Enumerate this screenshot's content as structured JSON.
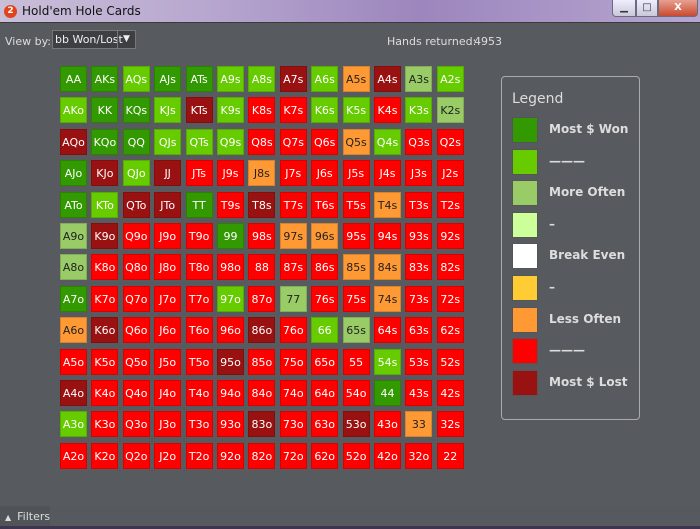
{
  "window": {
    "title": "Hold'em Hole Cards",
    "app_icon": "2",
    "min": "▁",
    "max": "□",
    "close": "X"
  },
  "toolbar": {
    "view_by_label": "View by:",
    "view_by_value": "bb Won/Lost",
    "hands_label": "Hands returned:",
    "hands_value": "4953"
  },
  "colors": {
    "D": "#339900",
    "G": "#66cc00",
    "L": "#99cc66",
    "P": "#ccff99",
    "W": "#ffffff",
    "Y": "#ffcc33",
    "O": "#ff9933",
    "R": "#ff0000",
    "M": "#991111"
  },
  "grid": [
    [
      [
        "AA",
        "D"
      ],
      [
        "AKs",
        "D"
      ],
      [
        "AQs",
        "G"
      ],
      [
        "AJs",
        "D"
      ],
      [
        "ATs",
        "D"
      ],
      [
        "A9s",
        "G"
      ],
      [
        "A8s",
        "G"
      ],
      [
        "A7s",
        "M"
      ],
      [
        "A6s",
        "G"
      ],
      [
        "A5s",
        "O"
      ],
      [
        "A4s",
        "M"
      ],
      [
        "A3s",
        "L"
      ],
      [
        "A2s",
        "G"
      ]
    ],
    [
      [
        "AKo",
        "G"
      ],
      [
        "KK",
        "D"
      ],
      [
        "KQs",
        "D"
      ],
      [
        "KJs",
        "G"
      ],
      [
        "KTs",
        "M"
      ],
      [
        "K9s",
        "G"
      ],
      [
        "K8s",
        "R"
      ],
      [
        "K7s",
        "R"
      ],
      [
        "K6s",
        "G"
      ],
      [
        "K5s",
        "G"
      ],
      [
        "K4s",
        "R"
      ],
      [
        "K3s",
        "G"
      ],
      [
        "K2s",
        "L"
      ]
    ],
    [
      [
        "AQo",
        "M"
      ],
      [
        "KQo",
        "D"
      ],
      [
        "QQ",
        "D"
      ],
      [
        "QJs",
        "G"
      ],
      [
        "QTs",
        "G"
      ],
      [
        "Q9s",
        "G"
      ],
      [
        "Q8s",
        "R"
      ],
      [
        "Q7s",
        "R"
      ],
      [
        "Q6s",
        "R"
      ],
      [
        "Q5s",
        "O"
      ],
      [
        "Q4s",
        "G"
      ],
      [
        "Q3s",
        "R"
      ],
      [
        "Q2s",
        "R"
      ]
    ],
    [
      [
        "AJo",
        "D"
      ],
      [
        "KJo",
        "M"
      ],
      [
        "QJo",
        "G"
      ],
      [
        "JJ",
        "M"
      ],
      [
        "JTs",
        "R"
      ],
      [
        "J9s",
        "R"
      ],
      [
        "J8s",
        "O"
      ],
      [
        "J7s",
        "R"
      ],
      [
        "J6s",
        "R"
      ],
      [
        "J5s",
        "R"
      ],
      [
        "J4s",
        "R"
      ],
      [
        "J3s",
        "R"
      ],
      [
        "J2s",
        "R"
      ]
    ],
    [
      [
        "ATo",
        "D"
      ],
      [
        "KTo",
        "G"
      ],
      [
        "QTo",
        "M"
      ],
      [
        "JTo",
        "M"
      ],
      [
        "TT",
        "D"
      ],
      [
        "T9s",
        "R"
      ],
      [
        "T8s",
        "M"
      ],
      [
        "T7s",
        "R"
      ],
      [
        "T6s",
        "R"
      ],
      [
        "T5s",
        "R"
      ],
      [
        "T4s",
        "O"
      ],
      [
        "T3s",
        "R"
      ],
      [
        "T2s",
        "R"
      ]
    ],
    [
      [
        "A9o",
        "L"
      ],
      [
        "K9o",
        "M"
      ],
      [
        "Q9o",
        "R"
      ],
      [
        "J9o",
        "R"
      ],
      [
        "T9o",
        "R"
      ],
      [
        "99",
        "D"
      ],
      [
        "98s",
        "R"
      ],
      [
        "97s",
        "O"
      ],
      [
        "96s",
        "O"
      ],
      [
        "95s",
        "R"
      ],
      [
        "94s",
        "R"
      ],
      [
        "93s",
        "R"
      ],
      [
        "92s",
        "R"
      ]
    ],
    [
      [
        "A8o",
        "L"
      ],
      [
        "K8o",
        "R"
      ],
      [
        "Q8o",
        "R"
      ],
      [
        "J8o",
        "R"
      ],
      [
        "T8o",
        "R"
      ],
      [
        "98o",
        "R"
      ],
      [
        "88",
        "R"
      ],
      [
        "87s",
        "R"
      ],
      [
        "86s",
        "R"
      ],
      [
        "85s",
        "O"
      ],
      [
        "84s",
        "O"
      ],
      [
        "83s",
        "R"
      ],
      [
        "82s",
        "R"
      ]
    ],
    [
      [
        "A7o",
        "D"
      ],
      [
        "K7o",
        "R"
      ],
      [
        "Q7o",
        "R"
      ],
      [
        "J7o",
        "R"
      ],
      [
        "T7o",
        "R"
      ],
      [
        "97o",
        "G"
      ],
      [
        "87o",
        "R"
      ],
      [
        "77",
        "L"
      ],
      [
        "76s",
        "R"
      ],
      [
        "75s",
        "R"
      ],
      [
        "74s",
        "O"
      ],
      [
        "73s",
        "R"
      ],
      [
        "72s",
        "R"
      ]
    ],
    [
      [
        "A6o",
        "O"
      ],
      [
        "K6o",
        "M"
      ],
      [
        "Q6o",
        "R"
      ],
      [
        "J6o",
        "R"
      ],
      [
        "T6o",
        "R"
      ],
      [
        "96o",
        "R"
      ],
      [
        "86o",
        "M"
      ],
      [
        "76o",
        "R"
      ],
      [
        "66",
        "G"
      ],
      [
        "65s",
        "L"
      ],
      [
        "64s",
        "R"
      ],
      [
        "63s",
        "R"
      ],
      [
        "62s",
        "R"
      ]
    ],
    [
      [
        "A5o",
        "R"
      ],
      [
        "K5o",
        "R"
      ],
      [
        "Q5o",
        "R"
      ],
      [
        "J5o",
        "R"
      ],
      [
        "T5o",
        "R"
      ],
      [
        "95o",
        "M"
      ],
      [
        "85o",
        "R"
      ],
      [
        "75o",
        "R"
      ],
      [
        "65o",
        "R"
      ],
      [
        "55",
        "R"
      ],
      [
        "54s",
        "G"
      ],
      [
        "53s",
        "R"
      ],
      [
        "52s",
        "R"
      ]
    ],
    [
      [
        "A4o",
        "M"
      ],
      [
        "K4o",
        "R"
      ],
      [
        "Q4o",
        "R"
      ],
      [
        "J4o",
        "R"
      ],
      [
        "T4o",
        "R"
      ],
      [
        "94o",
        "R"
      ],
      [
        "84o",
        "R"
      ],
      [
        "74o",
        "R"
      ],
      [
        "64o",
        "R"
      ],
      [
        "54o",
        "R"
      ],
      [
        "44",
        "D"
      ],
      [
        "43s",
        "R"
      ],
      [
        "42s",
        "R"
      ]
    ],
    [
      [
        "A3o",
        "G"
      ],
      [
        "K3o",
        "R"
      ],
      [
        "Q3o",
        "R"
      ],
      [
        "J3o",
        "R"
      ],
      [
        "T3o",
        "R"
      ],
      [
        "93o",
        "R"
      ],
      [
        "83o",
        "M"
      ],
      [
        "73o",
        "R"
      ],
      [
        "63o",
        "R"
      ],
      [
        "53o",
        "M"
      ],
      [
        "43o",
        "R"
      ],
      [
        "33",
        "O"
      ],
      [
        "32s",
        "R"
      ]
    ],
    [
      [
        "A2o",
        "R"
      ],
      [
        "K2o",
        "R"
      ],
      [
        "Q2o",
        "R"
      ],
      [
        "J2o",
        "R"
      ],
      [
        "T2o",
        "R"
      ],
      [
        "92o",
        "R"
      ],
      [
        "82o",
        "R"
      ],
      [
        "72o",
        "R"
      ],
      [
        "62o",
        "R"
      ],
      [
        "52o",
        "R"
      ],
      [
        "42o",
        "R"
      ],
      [
        "32o",
        "R"
      ],
      [
        "22",
        "R"
      ]
    ]
  ],
  "legend": {
    "title": "Legend",
    "items": [
      {
        "label": "Most $ Won",
        "c": "D"
      },
      {
        "label": "———",
        "c": "G"
      },
      {
        "label": "More Often",
        "c": "L"
      },
      {
        "label": "–",
        "c": "P"
      },
      {
        "label": "Break Even",
        "c": "W"
      },
      {
        "label": "–",
        "c": "Y"
      },
      {
        "label": "Less Often",
        "c": "O"
      },
      {
        "label": "———",
        "c": "R"
      },
      {
        "label": "Most $ Lost",
        "c": "M"
      }
    ]
  },
  "footer": {
    "filters_label": "Filters",
    "filters_icon": "chevron-up-icon"
  }
}
